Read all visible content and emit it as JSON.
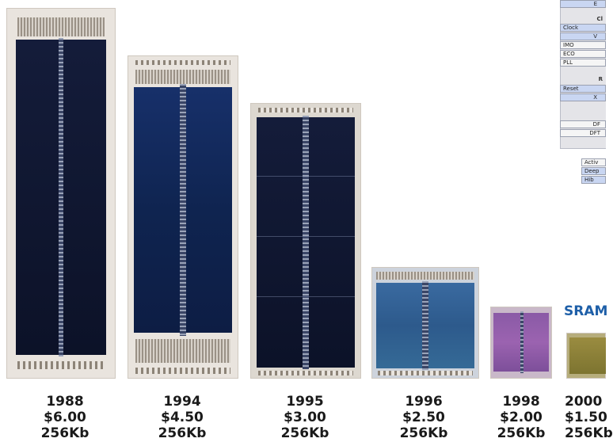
{
  "dies": [
    {
      "year": "1988",
      "price": "$6.00",
      "capacity": "256Kb"
    },
    {
      "year": "1994",
      "price": "$4.50",
      "capacity": "256Kb"
    },
    {
      "year": "1995",
      "price": "$3.00",
      "capacity": "256Kb"
    },
    {
      "year": "1996",
      "price": "$2.50",
      "capacity": "256Kb"
    },
    {
      "year": "1998",
      "price": "$2.00",
      "capacity": "256Kb"
    },
    {
      "year": "2000",
      "price": "$1.50",
      "capacity": "256Kb"
    }
  ],
  "sram_label": "SRAM",
  "doc_fragment": {
    "header_clocks": "Cl",
    "clock_rows": [
      "Clock",
      "V",
      "IMO",
      "ECO",
      "PLL"
    ],
    "header_reset": "R",
    "reset_rows": [
      "Reset",
      "X"
    ],
    "dft_rows": [
      "DF",
      "DFT"
    ],
    "power_rows": [
      "Activ",
      "Deep",
      "Hib"
    ],
    "top_row": "E"
  },
  "colors": {
    "label_text": "#1a1a1a",
    "sram_text": "#1e5fa8"
  }
}
